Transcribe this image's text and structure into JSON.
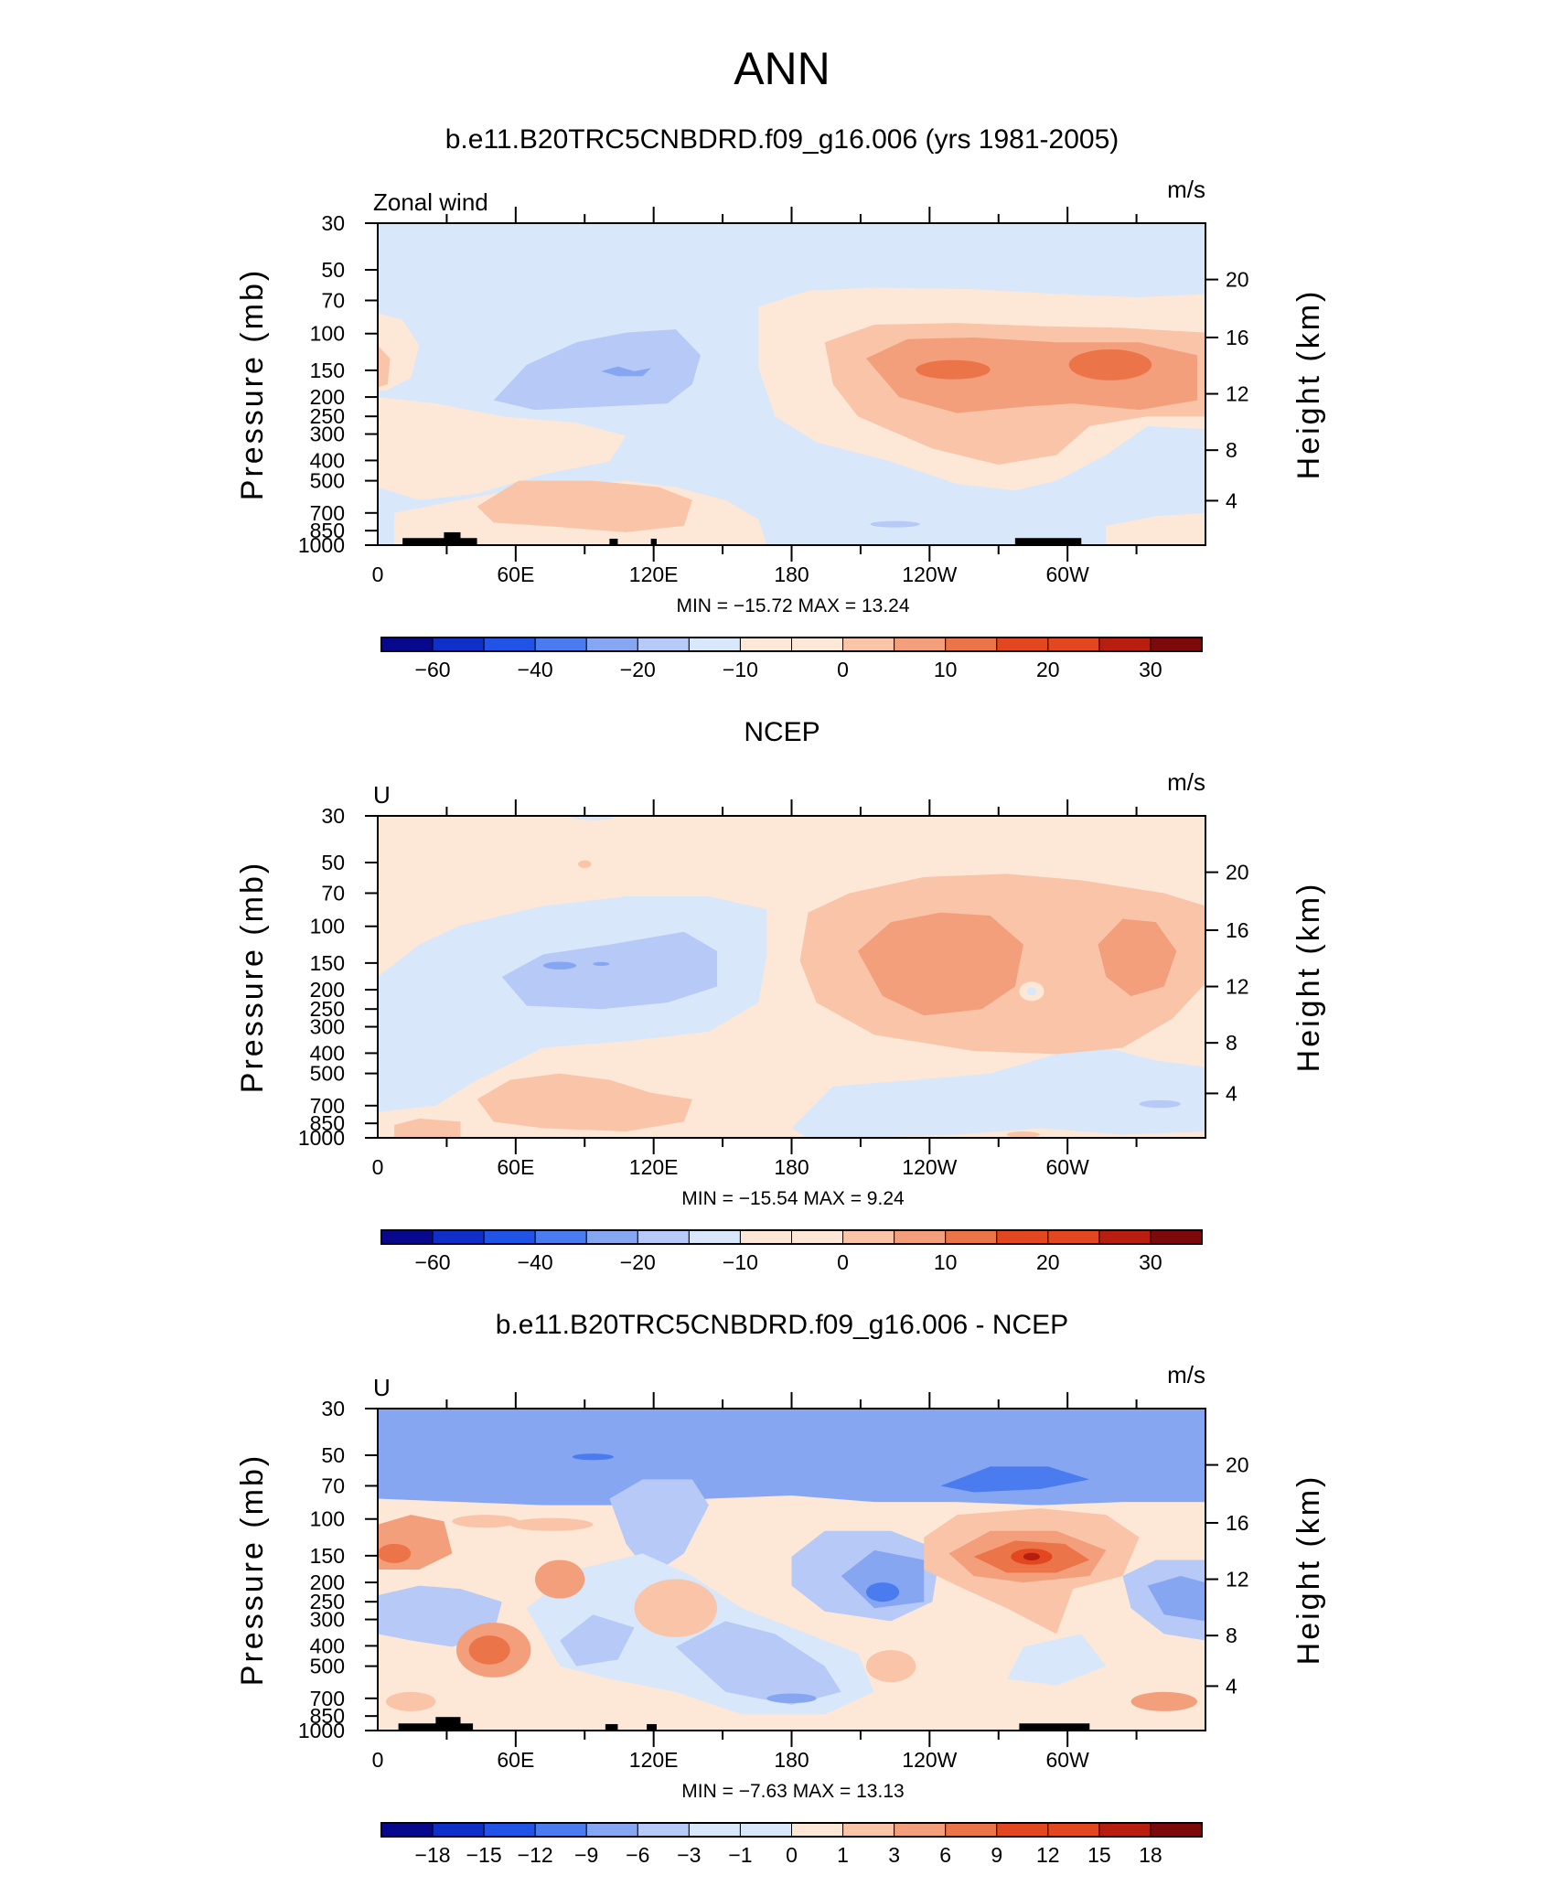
{
  "page_title": "ANN",
  "colors": {
    "scale": [
      "#08088c",
      "#0f2fc8",
      "#2154e6",
      "#4a7cf0",
      "#86a6f2",
      "#b6c9f7",
      "#d8e7fa",
      "#fde8d8",
      "#f9c4a8",
      "#f39f7c",
      "#ec7449",
      "#e2471f",
      "#b71e0f",
      "#7d0a0a"
    ],
    "land": "#000000"
  },
  "chart_data": [
    {
      "type": "contour",
      "title": "b.e11.B20TRC5CNBDRD.f09_g16.006 (yrs 1981-2005)",
      "left_label": "Zonal wind",
      "units": "m/s",
      "ylabel": "Pressure (mb)",
      "y2label": "Height (km)",
      "xticks": [
        "0",
        "60E",
        "120E",
        "180",
        "120W",
        "60W"
      ],
      "yticks": [
        "30",
        "50",
        "70",
        "100",
        "150",
        "200",
        "250",
        "300",
        "400",
        "500",
        "700",
        "850",
        "1000"
      ],
      "y2ticks": [
        "20",
        "16",
        "12",
        "8",
        "4"
      ],
      "stats": "MIN = −15.72   MAX =   13.24",
      "colorbar_labels": [
        "−60",
        "−40",
        "−20",
        "−10",
        "0",
        "10",
        "20",
        "30"
      ],
      "colorbar_bins": 16,
      "min": -15.72,
      "max": 13.24
    },
    {
      "type": "contour",
      "title": "NCEP",
      "left_label": "U",
      "units": "m/s",
      "ylabel": "Pressure (mb)",
      "y2label": "Height (km)",
      "xticks": [
        "0",
        "60E",
        "120E",
        "180",
        "120W",
        "60W"
      ],
      "yticks": [
        "30",
        "50",
        "70",
        "100",
        "150",
        "200",
        "250",
        "300",
        "400",
        "500",
        "700",
        "850",
        "1000"
      ],
      "y2ticks": [
        "20",
        "16",
        "12",
        "8",
        "4"
      ],
      "stats": "MIN = −15.54   MAX =     9.24",
      "colorbar_labels": [
        "−60",
        "−40",
        "−20",
        "−10",
        "0",
        "10",
        "20",
        "30"
      ],
      "colorbar_bins": 16,
      "min": -15.54,
      "max": 9.24
    },
    {
      "type": "contour",
      "title": "b.e11.B20TRC5CNBDRD.f09_g16.006 - NCEP",
      "left_label": "U",
      "units": "m/s",
      "ylabel": "Pressure (mb)",
      "y2label": "Height (km)",
      "xticks": [
        "0",
        "60E",
        "120E",
        "180",
        "120W",
        "60W"
      ],
      "yticks": [
        "30",
        "50",
        "70",
        "100",
        "150",
        "200",
        "250",
        "300",
        "400",
        "500",
        "700",
        "850",
        "1000"
      ],
      "y2ticks": [
        "20",
        "16",
        "12",
        "8",
        "4"
      ],
      "stats": "MIN =    −7.63   MAX =   13.13",
      "colorbar_labels": [
        "−18",
        "−15",
        "−12",
        "−9",
        "−6",
        "−3",
        "−1",
        "0",
        "1",
        "3",
        "6",
        "9",
        "12",
        "15",
        "18"
      ],
      "colorbar_bins": 16,
      "min": -7.63,
      "max": 13.13
    }
  ]
}
